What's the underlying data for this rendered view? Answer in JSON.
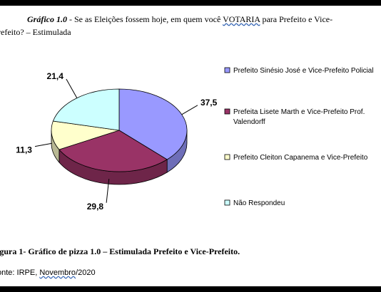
{
  "title": {
    "prefix": "Gráfico 1.0",
    "line1_a": " - Se as Eleições fossem hoje, em quem você ",
    "line1_b": "VOTARIA",
    "line1_c": "  para Prefeito e Vice-",
    "line2": "refeito? – Estimulada"
  },
  "chart_data": {
    "type": "pie",
    "categories": [
      "Prefeito Sinésio José e Vice-Prefeito Policial",
      "Prefeita Lisete Marth  e Vice-Prefeito Prof. Valendorff",
      "Prefeito Cleiton Capanema  e Vice-Prefeito",
      "Não Respondeu"
    ],
    "values": [
      37.5,
      29.8,
      11.3,
      21.4
    ],
    "value_labels": [
      "37,5",
      "29,8",
      "11,3",
      "21,4"
    ],
    "legend_lines": [
      [
        "Prefeito Sinésio José e Vice-Prefeito Policial"
      ],
      [
        "Prefeita Lisete Marth  e Vice-Prefeito Prof.",
        "Valendorff"
      ],
      [
        "Prefeito Cleiton Capanema  e Vice-Prefeito"
      ],
      [
        "Não Respondeu"
      ]
    ],
    "colors": [
      "#9999ff",
      "#993366",
      "#ffffcc",
      "#ccffff"
    ],
    "legend_position": "right"
  },
  "caption": "igura 1- Gráfico de pizza 1.0 – Estimulada Prefeito e Vice-Prefeito.",
  "source": {
    "prefix": "onte: IRPE, ",
    "month": "Novembro",
    "suffix": "/2020"
  }
}
